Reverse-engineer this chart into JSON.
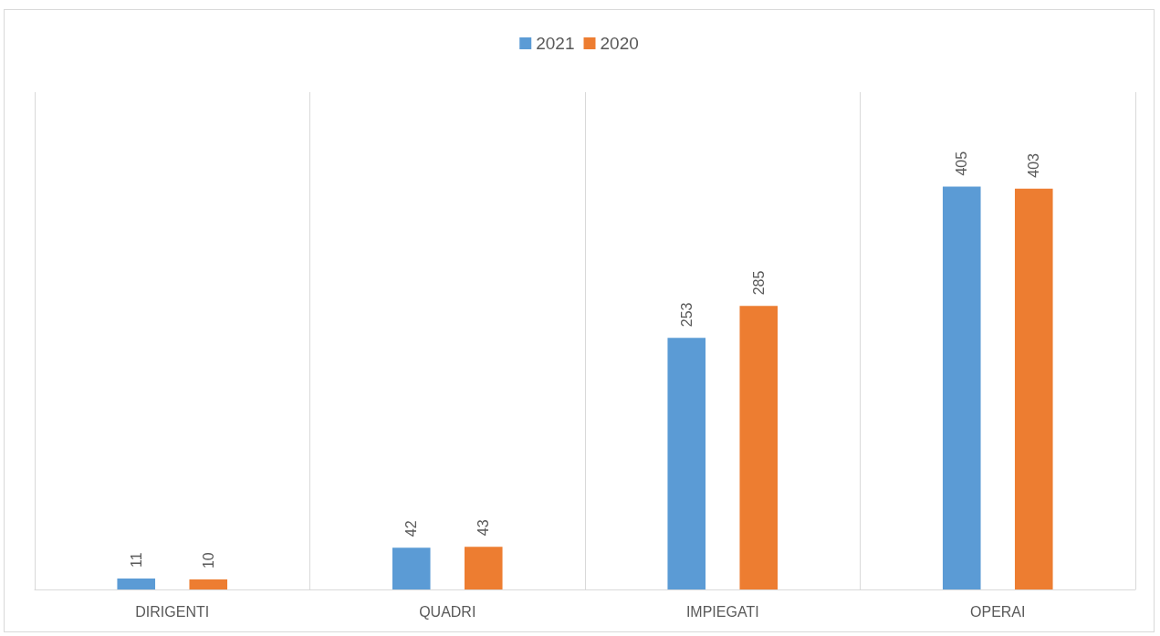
{
  "chart_data": {
    "type": "bar",
    "categories": [
      "DIRIGENTI",
      "QUADRI",
      "IMPIEGATI",
      "OPERAI"
    ],
    "series": [
      {
        "name": "2021",
        "color": "#5b9bd5",
        "values": [
          11,
          42,
          253,
          405
        ]
      },
      {
        "name": "2020",
        "color": "#ed7d31",
        "values": [
          10,
          43,
          285,
          403
        ]
      }
    ],
    "data_labels": true,
    "grid": "x",
    "legend": "top"
  }
}
